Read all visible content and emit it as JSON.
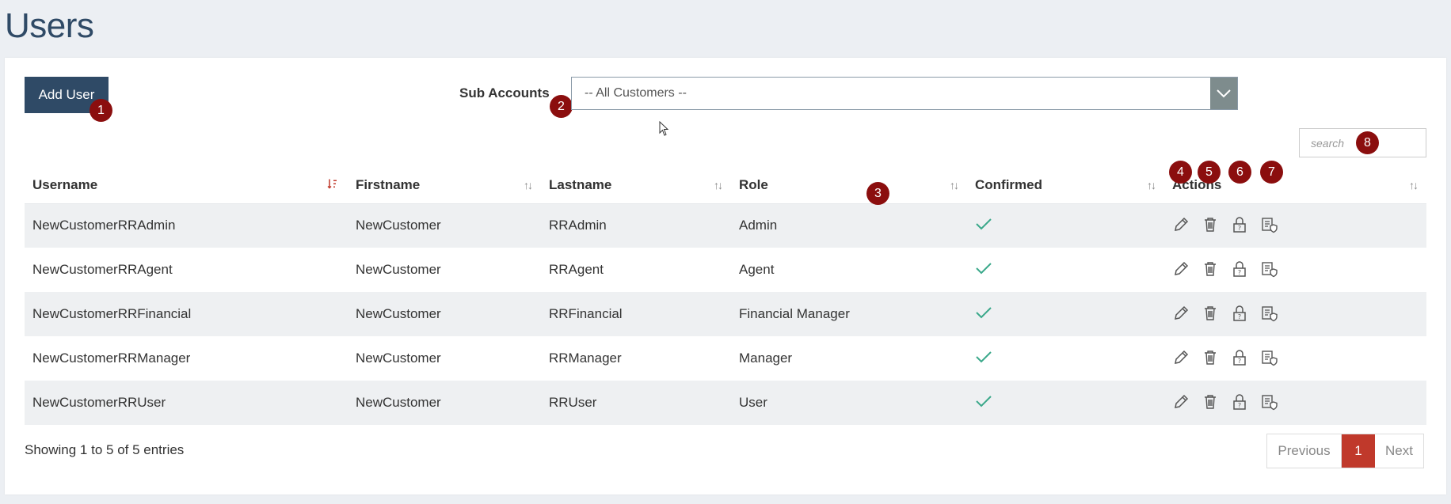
{
  "page": {
    "title": "Users"
  },
  "toolbar": {
    "add_user_label": "Add User",
    "sub_accounts_label": "Sub Accounts"
  },
  "sub_accounts": {
    "selected": "-- All Customers --"
  },
  "search": {
    "placeholder": "search"
  },
  "badges": [
    "1",
    "2",
    "3",
    "4",
    "5",
    "6",
    "7",
    "8"
  ],
  "table": {
    "headers": [
      "Username",
      "Firstname",
      "Lastname",
      "Role",
      "Confirmed",
      "Actions"
    ],
    "rows": [
      {
        "username": "NewCustomerRRAdmin",
        "firstname": "NewCustomer",
        "lastname": "RRAdmin",
        "role": "Admin"
      },
      {
        "username": "NewCustomerRRAgent",
        "firstname": "NewCustomer",
        "lastname": "RRAgent",
        "role": "Agent"
      },
      {
        "username": "NewCustomerRRFinancial",
        "firstname": "NewCustomer",
        "lastname": "RRFinancial",
        "role": "Financial Manager"
      },
      {
        "username": "NewCustomerRRManager",
        "firstname": "NewCustomer",
        "lastname": "RRManager",
        "role": "Manager"
      },
      {
        "username": "NewCustomerRRUser",
        "firstname": "NewCustomer",
        "lastname": "RRUser",
        "role": "User"
      }
    ],
    "confirmed_icon": "check-icon",
    "action_icons": [
      "edit-icon",
      "delete-icon",
      "password-lock-icon",
      "permissions-icon"
    ]
  },
  "footer": {
    "entries_text": "Showing 1 to 5 of 5 entries"
  },
  "pagination": {
    "previous": "Previous",
    "current": "1",
    "next": "Next"
  },
  "colors": {
    "primary": "#2f4a66",
    "accent": "#c0392b",
    "badge": "#8b0e0e",
    "check": "#3aa88a"
  }
}
